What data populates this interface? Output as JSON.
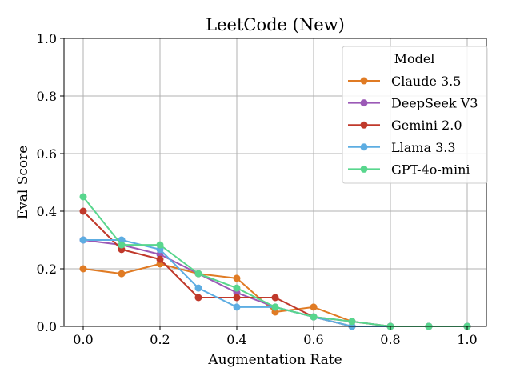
{
  "chart_data": {
    "type": "line",
    "title": "LeetCode (New)",
    "xlabel": "Augmentation Rate",
    "ylabel": "Eval Score",
    "xlim": [
      -0.05,
      1.05
    ],
    "ylim": [
      0.0,
      1.0
    ],
    "x_ticks": [
      "0.0",
      "0.2",
      "0.4",
      "0.6",
      "0.8",
      "1.0"
    ],
    "y_ticks": [
      "0.0",
      "0.2",
      "0.4",
      "0.6",
      "0.8",
      "1.0"
    ],
    "grid": true,
    "legend": {
      "title": "Model",
      "placement": "top-right"
    },
    "x": [
      0.0,
      0.1,
      0.2,
      0.3,
      0.4,
      0.5,
      0.6,
      0.7,
      0.8,
      0.9,
      1.0
    ],
    "series": [
      {
        "name": "Claude 3.5",
        "color": "#e07b24",
        "values": [
          0.2,
          0.183,
          0.217,
          0.183,
          0.167,
          0.05,
          0.067,
          0.017,
          0.0,
          0.0,
          0.0
        ]
      },
      {
        "name": "DeepSeek V3",
        "color": "#9b59b6",
        "values": [
          0.3,
          0.283,
          0.25,
          0.183,
          0.117,
          0.067,
          0.033,
          0.017,
          0.0,
          0.0,
          0.0
        ]
      },
      {
        "name": "Gemini 2.0",
        "color": "#c0392b",
        "values": [
          0.4,
          0.267,
          0.233,
          0.1,
          0.1,
          0.1,
          0.033,
          0.0,
          0.0,
          0.0,
          0.0
        ]
      },
      {
        "name": "Llama 3.3",
        "color": "#5dade2",
        "values": [
          0.3,
          0.3,
          0.267,
          0.133,
          0.067,
          0.067,
          0.033,
          0.0,
          0.0,
          0.0,
          0.0
        ]
      },
      {
        "name": "GPT-4o-mini",
        "color": "#58d68d",
        "values": [
          0.45,
          0.283,
          0.283,
          0.183,
          0.133,
          0.067,
          0.033,
          0.017,
          0.0,
          0.0,
          0.0
        ]
      }
    ]
  }
}
